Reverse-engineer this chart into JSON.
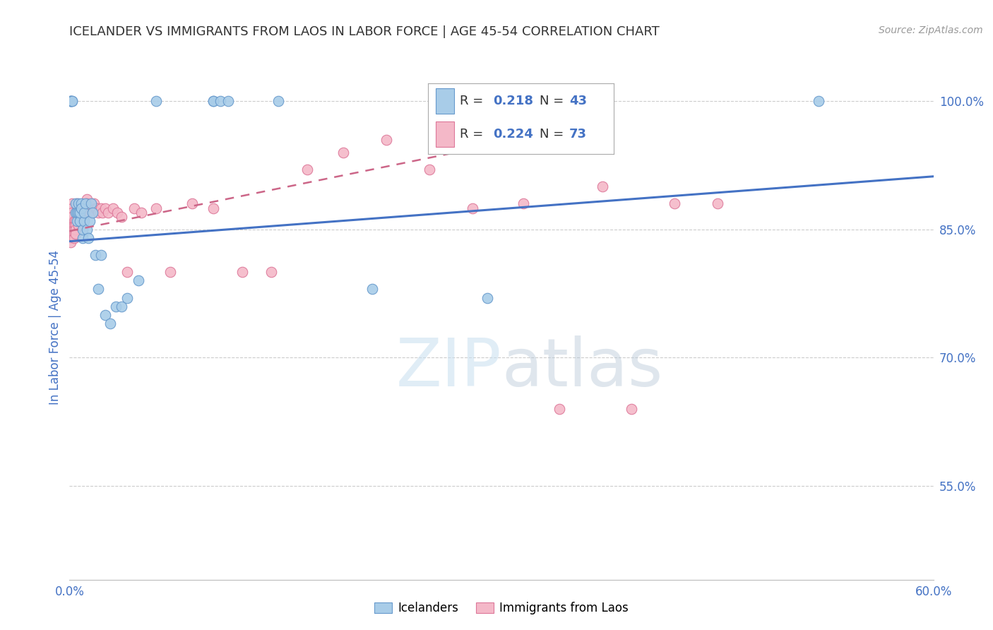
{
  "title": "ICELANDER VS IMMIGRANTS FROM LAOS IN LABOR FORCE | AGE 45-54 CORRELATION CHART",
  "source": "Source: ZipAtlas.com",
  "ylabel": "In Labor Force | Age 45-54",
  "x_min": 0.0,
  "x_max": 0.6,
  "y_min": 0.44,
  "y_max": 1.03,
  "x_ticks": [
    0.0,
    0.1,
    0.2,
    0.3,
    0.4,
    0.5,
    0.6
  ],
  "y_ticks": [
    0.55,
    0.7,
    0.85,
    1.0
  ],
  "y_tick_labels": [
    "55.0%",
    "70.0%",
    "85.0%",
    "100.0%"
  ],
  "legend_r1": "0.218",
  "legend_n1": "43",
  "legend_r2": "0.224",
  "legend_n2": "73",
  "legend_label1": "Icelanders",
  "legend_label2": "Immigrants from Laos",
  "color_blue": "#a8cce8",
  "color_pink": "#f4b8c8",
  "color_blue_edge": "#6699cc",
  "color_pink_edge": "#dd7799",
  "color_blue_line": "#4472c4",
  "color_pink_line": "#cc6688",
  "color_axis_labels": "#4472c4",
  "color_title": "#333333",
  "color_source": "#999999",
  "blue_scatter_x": [
    0.001,
    0.001,
    0.001,
    0.002,
    0.002,
    0.004,
    0.004,
    0.005,
    0.005,
    0.006,
    0.006,
    0.007,
    0.007,
    0.008,
    0.008,
    0.009,
    0.009,
    0.01,
    0.01,
    0.011,
    0.012,
    0.013,
    0.014,
    0.015,
    0.016,
    0.018,
    0.02,
    0.022,
    0.025,
    0.028,
    0.032,
    0.036,
    0.04,
    0.048,
    0.06,
    0.1,
    0.1,
    0.105,
    0.11,
    0.145,
    0.21,
    0.29,
    0.52
  ],
  "blue_scatter_y": [
    1.0,
    1.0,
    1.0,
    1.0,
    1.0,
    0.87,
    0.88,
    0.86,
    0.87,
    0.87,
    0.88,
    0.86,
    0.87,
    0.88,
    0.875,
    0.84,
    0.85,
    0.86,
    0.87,
    0.88,
    0.85,
    0.84,
    0.86,
    0.88,
    0.87,
    0.82,
    0.78,
    0.82,
    0.75,
    0.74,
    0.76,
    0.76,
    0.77,
    0.79,
    1.0,
    1.0,
    1.0,
    1.0,
    1.0,
    1.0,
    0.78,
    0.77,
    1.0
  ],
  "pink_scatter_x": [
    0.001,
    0.001,
    0.001,
    0.001,
    0.001,
    0.001,
    0.002,
    0.002,
    0.002,
    0.002,
    0.003,
    0.003,
    0.003,
    0.003,
    0.003,
    0.004,
    0.004,
    0.004,
    0.004,
    0.005,
    0.005,
    0.005,
    0.006,
    0.006,
    0.006,
    0.007,
    0.007,
    0.007,
    0.008,
    0.008,
    0.009,
    0.009,
    0.01,
    0.01,
    0.011,
    0.011,
    0.012,
    0.012,
    0.013,
    0.014,
    0.015,
    0.016,
    0.017,
    0.018,
    0.019,
    0.02,
    0.022,
    0.023,
    0.025,
    0.027,
    0.03,
    0.033,
    0.036,
    0.04,
    0.045,
    0.05,
    0.06,
    0.07,
    0.085,
    0.1,
    0.12,
    0.14,
    0.165,
    0.19,
    0.22,
    0.25,
    0.28,
    0.315,
    0.34,
    0.37,
    0.39,
    0.42,
    0.45
  ],
  "pink_scatter_y": [
    0.86,
    0.855,
    0.85,
    0.845,
    0.84,
    0.835,
    0.88,
    0.875,
    0.87,
    0.865,
    0.86,
    0.855,
    0.85,
    0.845,
    0.84,
    0.86,
    0.855,
    0.85,
    0.845,
    0.88,
    0.875,
    0.87,
    0.865,
    0.86,
    0.855,
    0.87,
    0.865,
    0.86,
    0.875,
    0.87,
    0.865,
    0.86,
    0.875,
    0.87,
    0.875,
    0.87,
    0.885,
    0.88,
    0.875,
    0.87,
    0.875,
    0.87,
    0.88,
    0.875,
    0.875,
    0.87,
    0.875,
    0.87,
    0.875,
    0.87,
    0.875,
    0.87,
    0.865,
    0.8,
    0.875,
    0.87,
    0.875,
    0.8,
    0.88,
    0.875,
    0.8,
    0.8,
    0.92,
    0.94,
    0.955,
    0.92,
    0.875,
    0.88,
    0.64,
    0.9,
    0.64,
    0.88,
    0.88
  ],
  "blue_trend_x": [
    0.0,
    0.6
  ],
  "blue_trend_y": [
    0.836,
    0.912
  ],
  "pink_trend_x": [
    0.0,
    0.37
  ],
  "pink_trend_y": [
    0.848,
    0.975
  ],
  "watermark_zip": "ZIP",
  "watermark_atlas": "atlas",
  "figsize": [
    14.06,
    8.92
  ],
  "dpi": 100
}
